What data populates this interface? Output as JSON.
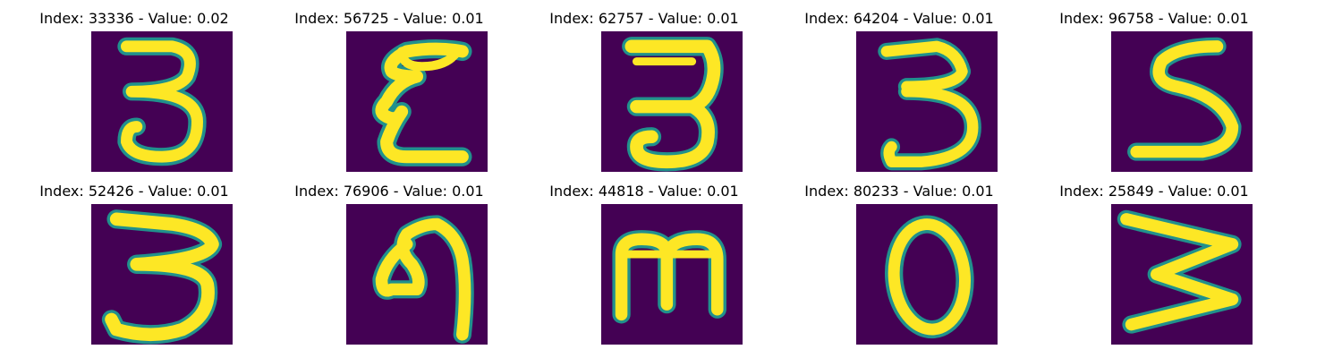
{
  "panels": [
    {
      "title": "Index: 33336 - Value: 0.02",
      "glyph": "3"
    },
    {
      "title": "Index: 56725 - Value: 0.01",
      "glyph": "E"
    },
    {
      "title": "Index: 62757 - Value: 0.01",
      "glyph": "3"
    },
    {
      "title": "Index: 64204 - Value: 0.01",
      "glyph": "3"
    },
    {
      "title": "Index: 96758 - Value: 0.01",
      "glyph": "5"
    },
    {
      "title": "Index: 52426 - Value: 0.01",
      "glyph": "3"
    },
    {
      "title": "Index: 76906 - Value: 0.01",
      "glyph": "9"
    },
    {
      "title": "Index: 44818 - Value: 0.01",
      "glyph": "m"
    },
    {
      "title": "Index: 80233 - Value: 0.01",
      "glyph": "0"
    },
    {
      "title": "Index: 25849 - Value: 0.01",
      "glyph": "w"
    }
  ],
  "colors": {
    "background": "#440154",
    "stroke": "#fde725",
    "edge": "#21918c"
  }
}
